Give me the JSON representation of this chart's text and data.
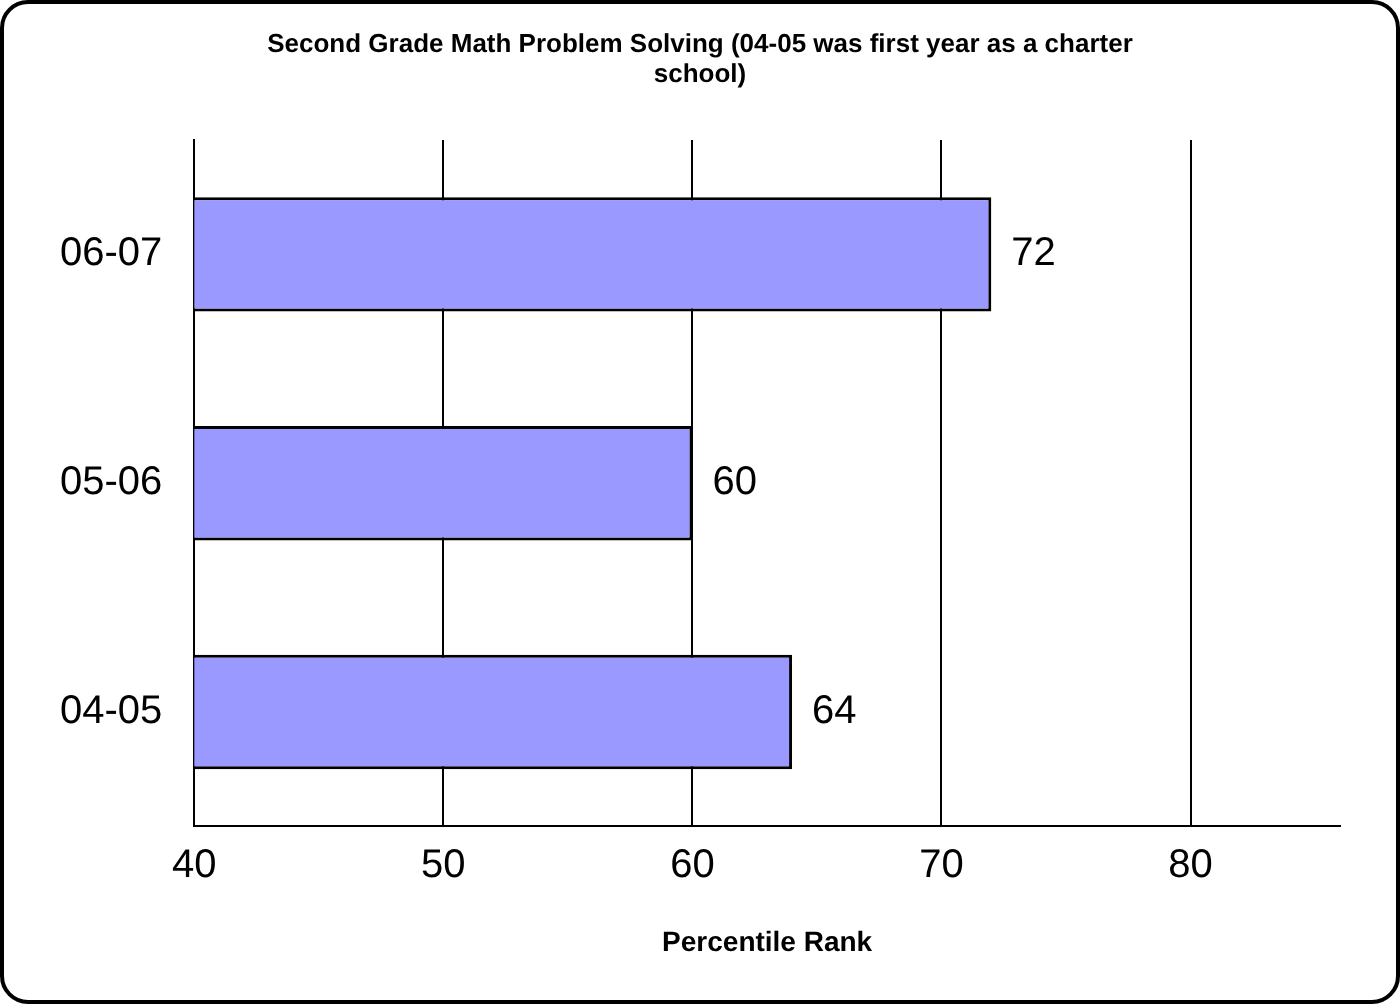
{
  "chart_data": {
    "type": "bar",
    "orientation": "horizontal",
    "title": "Second Grade Math Problem Solving (04-05 was first year as a charter school)",
    "xlabel": "Percentile Rank",
    "categories": [
      "06-07",
      "05-06",
      "04-05"
    ],
    "values": [
      72,
      60,
      64
    ],
    "color": "#9999ff",
    "xlim": [
      40,
      86
    ],
    "xticks": [
      40,
      50,
      60,
      70,
      80
    ],
    "grid": "x",
    "data_labels": true,
    "legend": false
  }
}
